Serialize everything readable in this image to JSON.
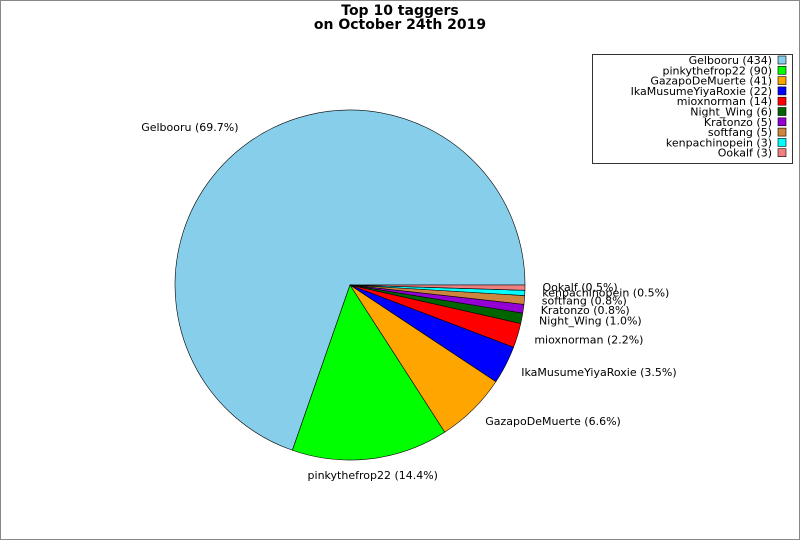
{
  "chart_data": {
    "type": "pie",
    "title": [
      "Top 10 taggers",
      "on October 24th 2019"
    ],
    "labels": [
      "Gelbooru (434)",
      "pinkythefrop22 (90)",
      "GazapoDeMuerte (41)",
      "IkaMusumeYiyaRoxie (22)",
      "mioxnorman (14)",
      "Night_Wing (6)",
      "Kratonzo (5)",
      "softfang (5)",
      "kenpachinopein (3)",
      "Ookalf (3)"
    ],
    "values": [
      434,
      90,
      41,
      22,
      14,
      6,
      5,
      5,
      3,
      3
    ],
    "value_labels": [
      "Gelbooru (69.7%)",
      "pinkythefrop22 (14.4%)",
      "GazapoDeMuerte (6.6%)",
      "IkaMusumeYiyaRoxie (3.5%)",
      "mioxnorman (2.2%)",
      "Night_Wing (1.0%)",
      "Kratonzo (0.8%)",
      "softfang (0.8%)",
      "kenpachinopein (0.5%)",
      "Ookalf (0.5%)"
    ],
    "colors": [
      "#87ceeb",
      "#00ff00",
      "#ffa500",
      "#0000ff",
      "#ff0000",
      "#006400",
      "#9400d3",
      "#cd853f",
      "#00ffff",
      "#f08080"
    ],
    "legend": "upper right"
  }
}
